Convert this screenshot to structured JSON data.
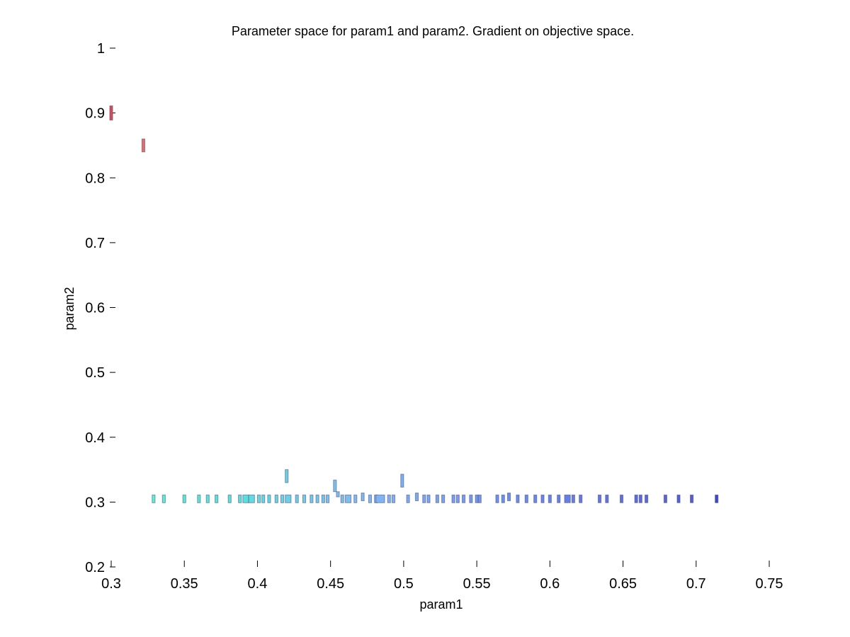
{
  "chart_data": {
    "type": "scatter",
    "title": "Parameter space for param1 and param2. Gradient on objective space.",
    "xlabel": "param1",
    "ylabel": "param2",
    "xlim": [
      0.3,
      0.75
    ],
    "ylim": [
      0.2,
      1.0
    ],
    "x_ticks": [
      "0.3",
      "0.35",
      "0.4",
      "0.45",
      "0.5",
      "0.55",
      "0.6",
      "0.65",
      "0.7",
      "0.75"
    ],
    "y_ticks": [
      "0.2",
      "0.3",
      "0.4",
      "0.5",
      "0.6",
      "0.7",
      "0.8",
      "0.9",
      "1"
    ],
    "grid": false,
    "legend": false,
    "color_gradient": {
      "low": "#2b3fd6",
      "mid": "#7ec8f5",
      "high": "#3ee8d0",
      "outlier": "#e06060"
    },
    "points": [
      {
        "x": 0.3,
        "y": 0.9,
        "color": "#d94a5a",
        "h": 0.022
      },
      {
        "x": 0.322,
        "y": 0.85,
        "color": "#e46c6c",
        "h": 0.02
      },
      {
        "x": 0.329,
        "y": 0.305,
        "color": "#5cf0d8"
      },
      {
        "x": 0.336,
        "y": 0.305,
        "color": "#5aeed8"
      },
      {
        "x": 0.35,
        "y": 0.305,
        "color": "#58ead8"
      },
      {
        "x": 0.36,
        "y": 0.305,
        "color": "#58e8d9"
      },
      {
        "x": 0.366,
        "y": 0.305,
        "color": "#57e6da"
      },
      {
        "x": 0.372,
        "y": 0.305,
        "color": "#57e4da"
      },
      {
        "x": 0.381,
        "y": 0.305,
        "color": "#58e2dc"
      },
      {
        "x": 0.388,
        "y": 0.305,
        "color": "#5ae0de"
      },
      {
        "x": 0.392,
        "y": 0.305,
        "color": "#5cdee0",
        "w": 0.004
      },
      {
        "x": 0.396,
        "y": 0.305,
        "color": "#5edce2",
        "w": 0.004
      },
      {
        "x": 0.401,
        "y": 0.305,
        "color": "#60dae3"
      },
      {
        "x": 0.404,
        "y": 0.305,
        "color": "#62d8e4"
      },
      {
        "x": 0.408,
        "y": 0.305,
        "color": "#64d6e5"
      },
      {
        "x": 0.413,
        "y": 0.305,
        "color": "#66d4e6"
      },
      {
        "x": 0.417,
        "y": 0.305,
        "color": "#68d2e8"
      },
      {
        "x": 0.42,
        "y": 0.34,
        "color": "#6ad0e8",
        "h": 0.02
      },
      {
        "x": 0.421,
        "y": 0.305,
        "color": "#6ad0e9",
        "w": 0.004
      },
      {
        "x": 0.427,
        "y": 0.305,
        "color": "#6ccdea"
      },
      {
        "x": 0.432,
        "y": 0.305,
        "color": "#6ecbeb"
      },
      {
        "x": 0.437,
        "y": 0.305,
        "color": "#70c9ec"
      },
      {
        "x": 0.441,
        "y": 0.305,
        "color": "#72c7ed"
      },
      {
        "x": 0.445,
        "y": 0.305,
        "color": "#74c5ee"
      },
      {
        "x": 0.448,
        "y": 0.305,
        "color": "#76c3ef"
      },
      {
        "x": 0.453,
        "y": 0.325,
        "color": "#78c1f0",
        "h": 0.018
      },
      {
        "x": 0.455,
        "y": 0.312,
        "color": "#78c0f0",
        "h": 0.008
      },
      {
        "x": 0.458,
        "y": 0.305,
        "color": "#7abef1"
      },
      {
        "x": 0.462,
        "y": 0.305,
        "color": "#7bbcf1",
        "w": 0.004
      },
      {
        "x": 0.467,
        "y": 0.305,
        "color": "#7cbaf2"
      },
      {
        "x": 0.472,
        "y": 0.308,
        "color": "#7db8f2",
        "h": 0.012
      },
      {
        "x": 0.477,
        "y": 0.305,
        "color": "#7eb6f3"
      },
      {
        "x": 0.481,
        "y": 0.305,
        "color": "#7eb5f3"
      },
      {
        "x": 0.484,
        "y": 0.305,
        "color": "#7eb4f3",
        "w": 0.006
      },
      {
        "x": 0.49,
        "y": 0.305,
        "color": "#7db2f3"
      },
      {
        "x": 0.493,
        "y": 0.305,
        "color": "#7cb0f3"
      },
      {
        "x": 0.499,
        "y": 0.333,
        "color": "#7baef3",
        "h": 0.02
      },
      {
        "x": 0.503,
        "y": 0.305,
        "color": "#7aacf3"
      },
      {
        "x": 0.509,
        "y": 0.308,
        "color": "#79aaf3",
        "h": 0.012
      },
      {
        "x": 0.514,
        "y": 0.305,
        "color": "#78a8f3"
      },
      {
        "x": 0.517,
        "y": 0.305,
        "color": "#77a6f3"
      },
      {
        "x": 0.523,
        "y": 0.305,
        "color": "#76a4f2"
      },
      {
        "x": 0.527,
        "y": 0.305,
        "color": "#75a2f2"
      },
      {
        "x": 0.534,
        "y": 0.305,
        "color": "#74a0f2"
      },
      {
        "x": 0.537,
        "y": 0.305,
        "color": "#739ef1"
      },
      {
        "x": 0.541,
        "y": 0.305,
        "color": "#729cf1"
      },
      {
        "x": 0.546,
        "y": 0.305,
        "color": "#719af1"
      },
      {
        "x": 0.55,
        "y": 0.305,
        "color": "#7098f0"
      },
      {
        "x": 0.552,
        "y": 0.305,
        "color": "#6f96f0"
      },
      {
        "x": 0.564,
        "y": 0.305,
        "color": "#6d92ef"
      },
      {
        "x": 0.568,
        "y": 0.305,
        "color": "#6c90ee"
      },
      {
        "x": 0.572,
        "y": 0.308,
        "color": "#6b8eee",
        "h": 0.012
      },
      {
        "x": 0.578,
        "y": 0.305,
        "color": "#6a8ced"
      },
      {
        "x": 0.584,
        "y": 0.305,
        "color": "#6989ec"
      },
      {
        "x": 0.59,
        "y": 0.305,
        "color": "#6887eb"
      },
      {
        "x": 0.595,
        "y": 0.305,
        "color": "#6785ea"
      },
      {
        "x": 0.6,
        "y": 0.305,
        "color": "#6683e9"
      },
      {
        "x": 0.606,
        "y": 0.305,
        "color": "#6581e8"
      },
      {
        "x": 0.612,
        "y": 0.305,
        "color": "#647fe7",
        "w": 0.004
      },
      {
        "x": 0.616,
        "y": 0.305,
        "color": "#637de6"
      },
      {
        "x": 0.621,
        "y": 0.305,
        "color": "#627ae5"
      },
      {
        "x": 0.634,
        "y": 0.305,
        "color": "#5f76e3"
      },
      {
        "x": 0.639,
        "y": 0.305,
        "color": "#5e74e2"
      },
      {
        "x": 0.649,
        "y": 0.305,
        "color": "#5c70e0"
      },
      {
        "x": 0.659,
        "y": 0.305,
        "color": "#5a6cde"
      },
      {
        "x": 0.662,
        "y": 0.305,
        "color": "#596add"
      },
      {
        "x": 0.666,
        "y": 0.305,
        "color": "#5868dc"
      },
      {
        "x": 0.679,
        "y": 0.305,
        "color": "#5664da"
      },
      {
        "x": 0.688,
        "y": 0.305,
        "color": "#5460d8"
      },
      {
        "x": 0.697,
        "y": 0.305,
        "color": "#525cd6"
      },
      {
        "x": 0.714,
        "y": 0.305,
        "color": "#3a48d0"
      }
    ]
  }
}
